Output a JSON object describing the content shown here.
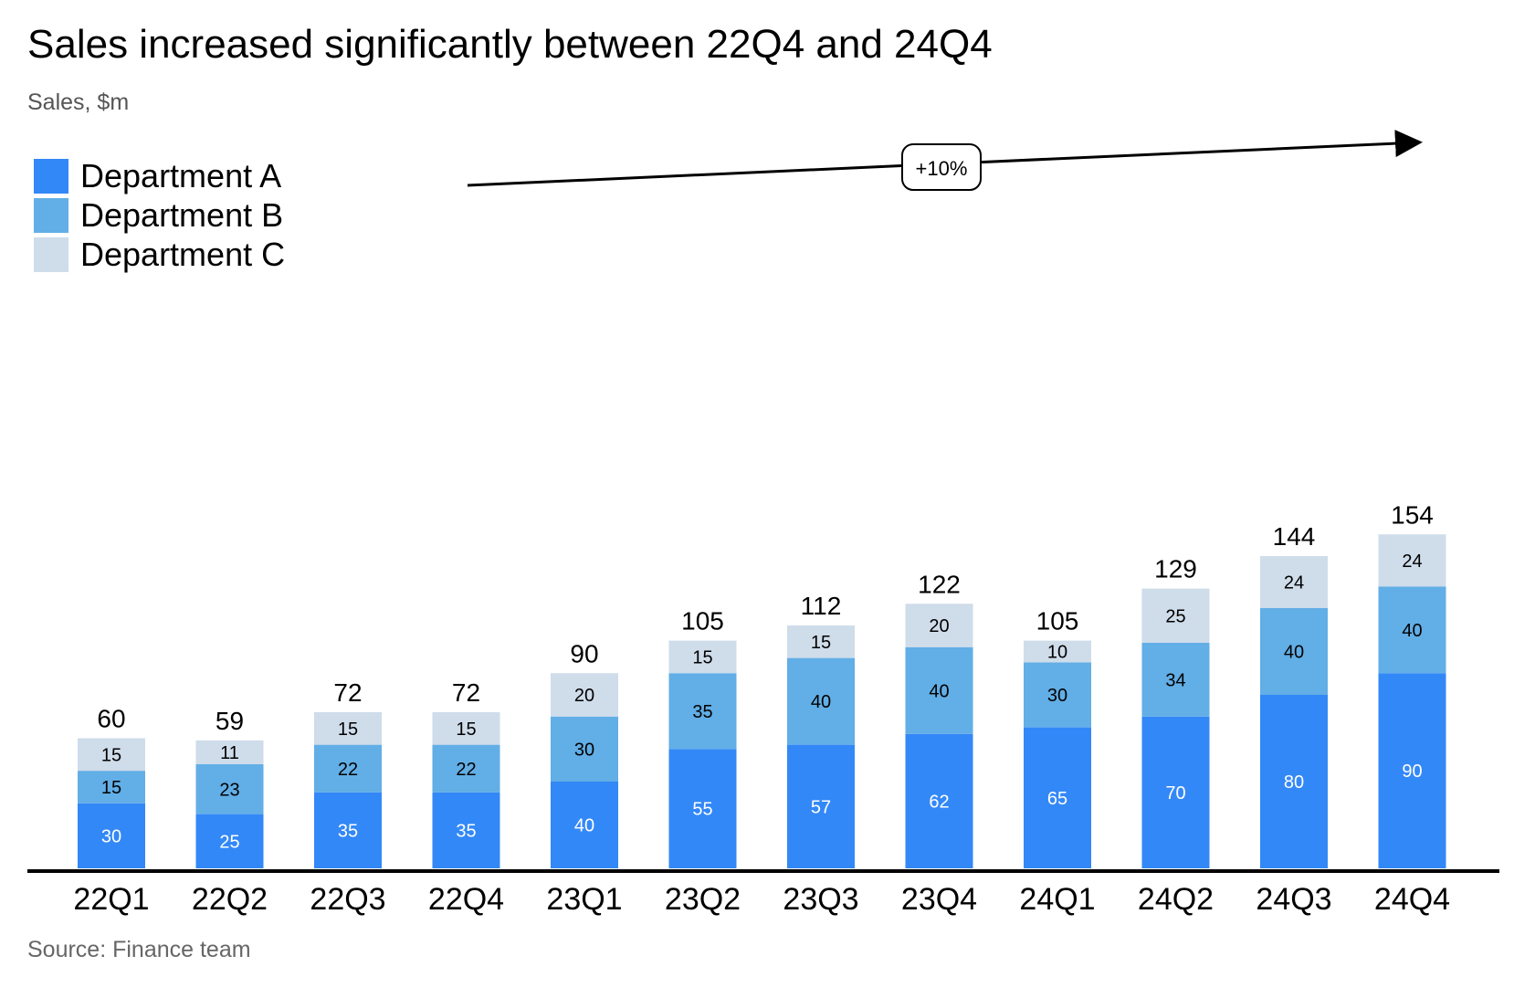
{
  "chart_data": {
    "type": "bar",
    "stacked": true,
    "title": "Sales increased significantly between 22Q4 and 24Q4",
    "subtitle": "Sales, $m",
    "source": "Source: Finance team",
    "categories": [
      "22Q1",
      "22Q2",
      "22Q3",
      "22Q4",
      "23Q1",
      "23Q2",
      "23Q3",
      "23Q4",
      "24Q1",
      "24Q2",
      "24Q3",
      "24Q4"
    ],
    "series": [
      {
        "name": "Department A",
        "color": "#3388f7",
        "label_color": "#ffffff",
        "values": [
          30,
          25,
          35,
          35,
          40,
          55,
          57,
          62,
          65,
          70,
          80,
          90
        ]
      },
      {
        "name": "Department B",
        "color": "#62aee6",
        "label_color": "#000000",
        "values": [
          15,
          23,
          22,
          22,
          30,
          35,
          40,
          40,
          30,
          34,
          40,
          40
        ]
      },
      {
        "name": "Department C",
        "color": "#cfdcea",
        "label_color": "#000000",
        "values": [
          15,
          11,
          15,
          15,
          20,
          15,
          15,
          20,
          10,
          25,
          24,
          24
        ]
      }
    ],
    "totals": [
      60,
      59,
      72,
      72,
      90,
      105,
      112,
      122,
      105,
      129,
      144,
      154
    ],
    "ylim": [
      0,
      160
    ],
    "grid": false,
    "legend_position": "top-left",
    "annotation": {
      "text": "+10%",
      "type": "cagr-arrow",
      "from": "22Q4",
      "to": "24Q4"
    }
  }
}
